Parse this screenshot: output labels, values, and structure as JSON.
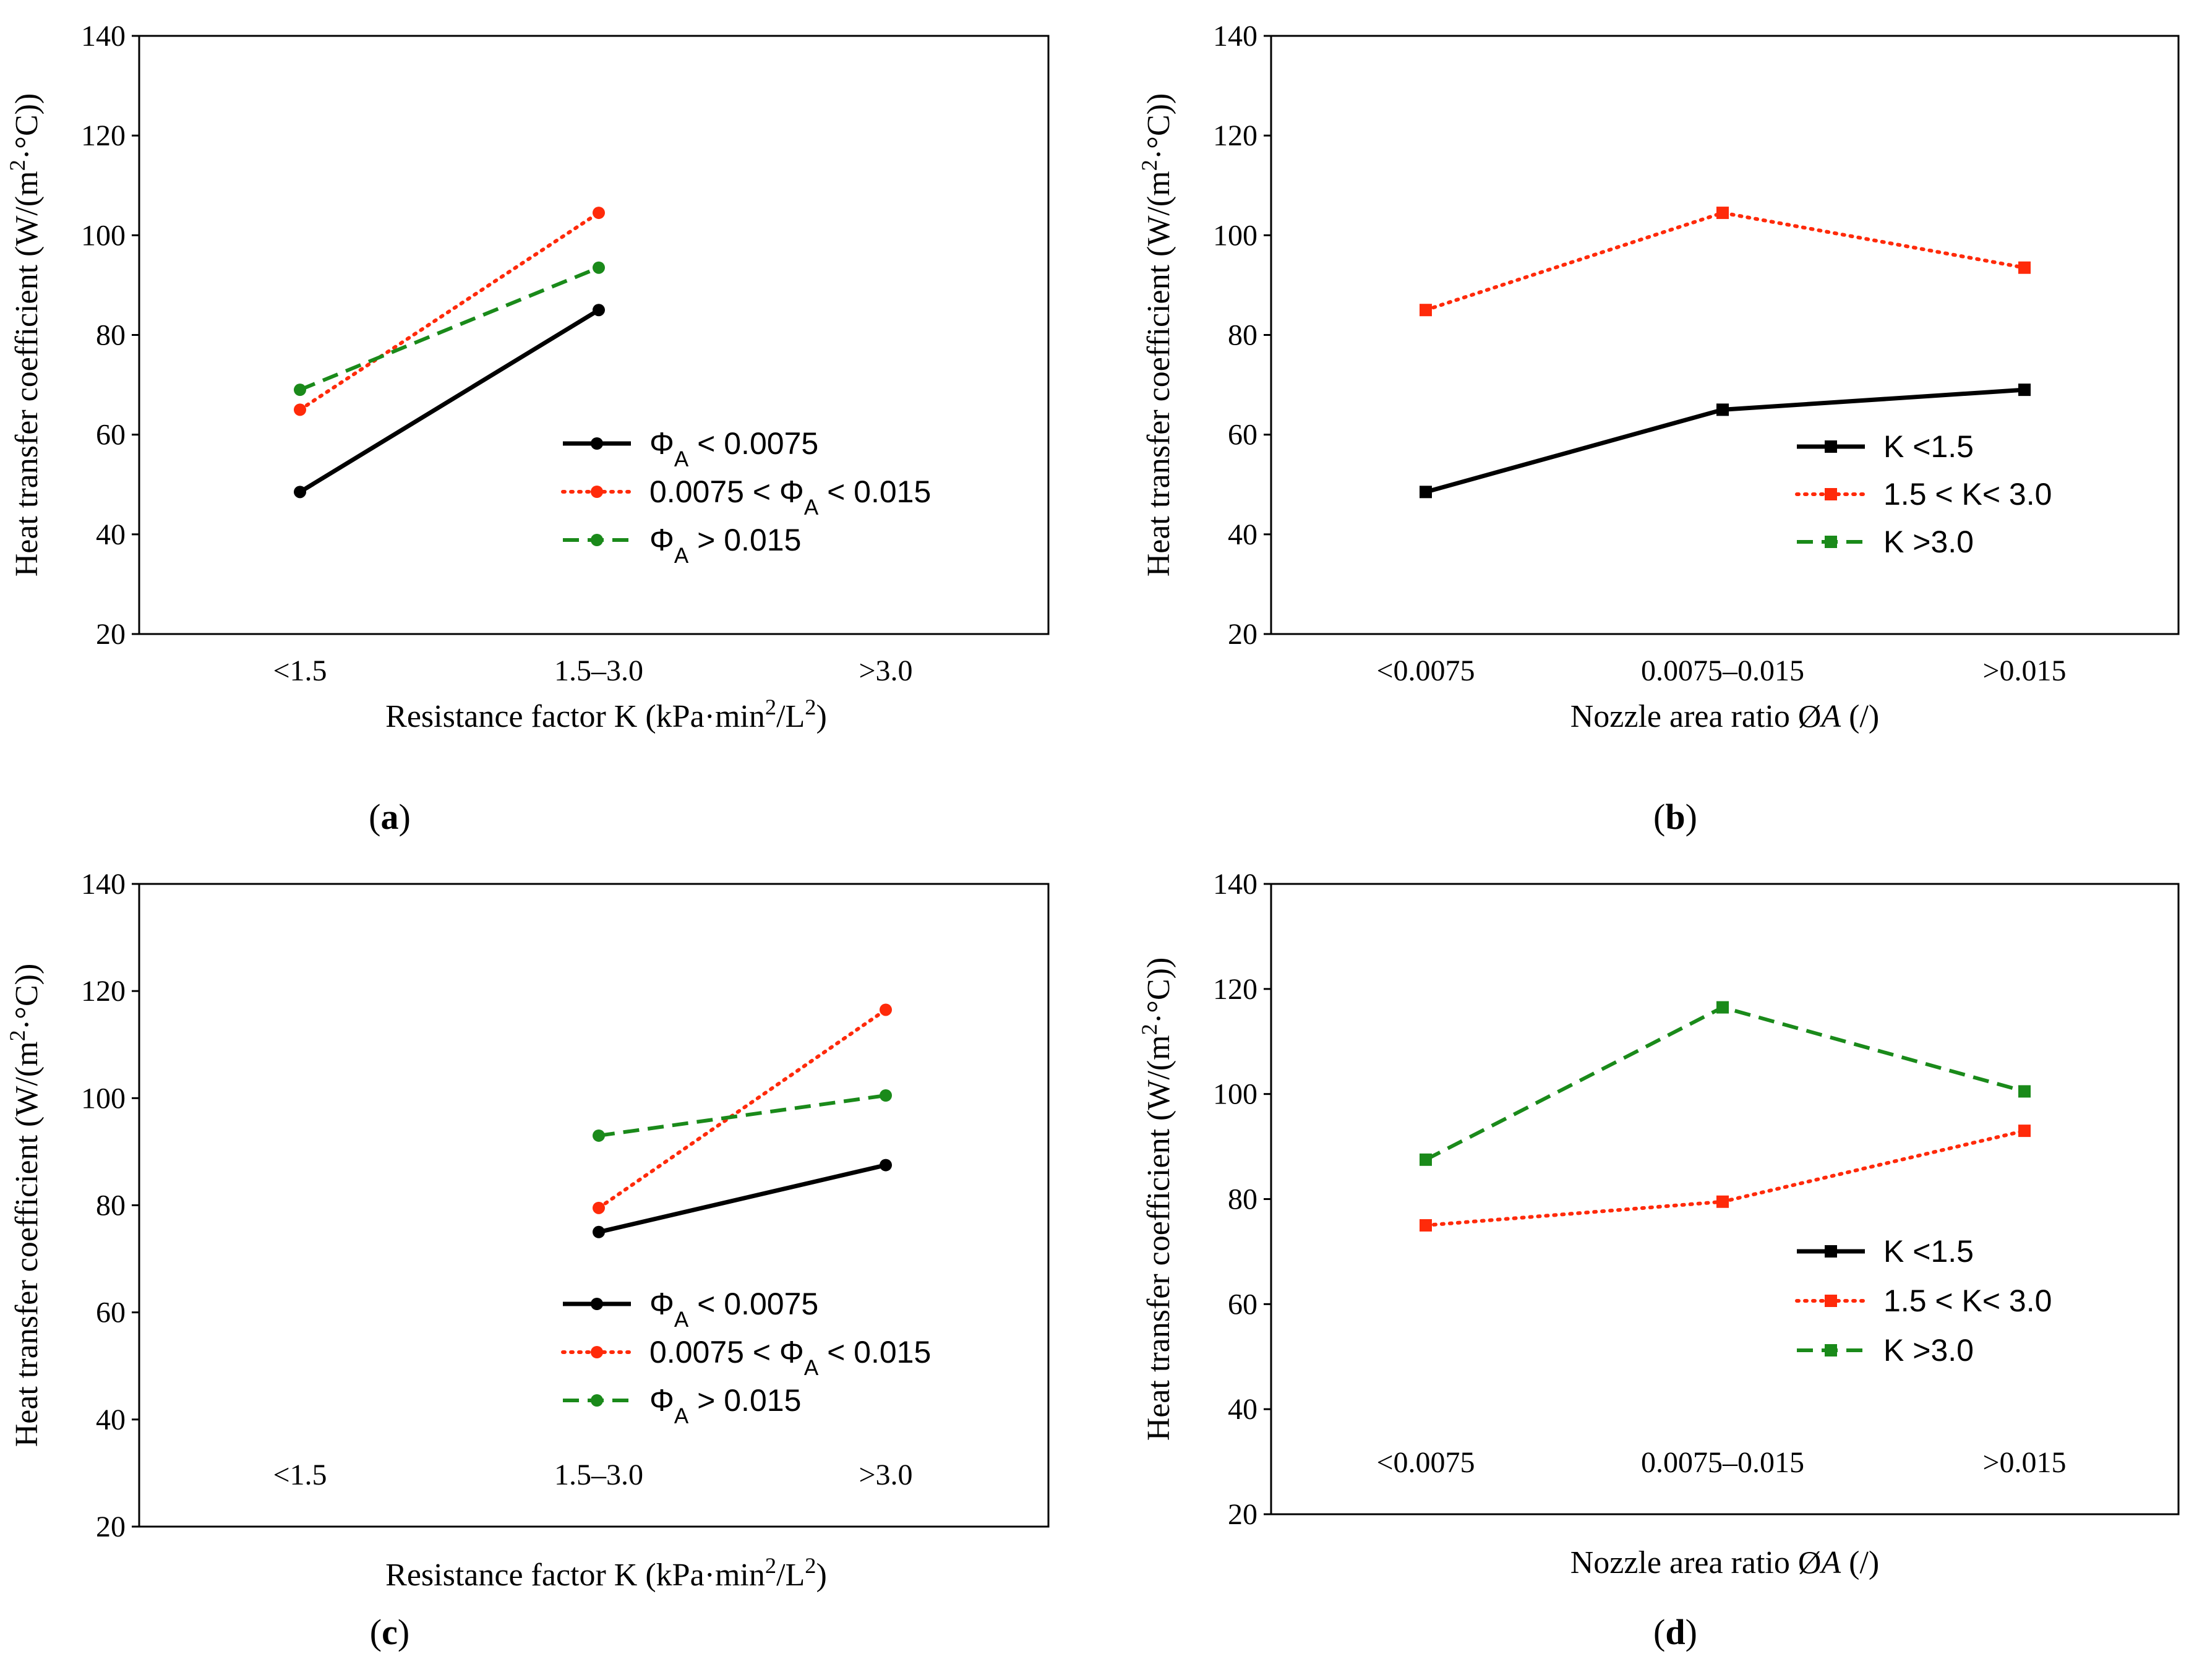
{
  "chart_data": [
    {
      "panel": "a",
      "type": "line",
      "caption_letter": "a",
      "xlabel": "Resistance factor K (kPa·min²/L²)",
      "xlabel_parts": [
        "Resistance factor K (kPa·min",
        "2",
        "/L",
        "2",
        ")"
      ],
      "ylabel": "Heat transfer coefficient (W/(m²·°C))",
      "ylabel_parts": [
        "Heat transfer coefficient (W/(m",
        "2",
        "·°C))"
      ],
      "categories": [
        "<1.5",
        "1.5–3.0",
        ">3.0"
      ],
      "category_label_position": "bottom",
      "ylim": [
        20,
        140
      ],
      "yticks": [
        20,
        40,
        60,
        80,
        100,
        120,
        140
      ],
      "series": [
        {
          "name": "ΦA < 0.0075",
          "legend": [
            "Φ",
            "A",
            " < 0.0075"
          ],
          "color": "#000000",
          "style": "solid",
          "marker": "circle",
          "values": [
            48.5,
            85,
            null
          ]
        },
        {
          "name": "0.0075 < ΦA < 0.015",
          "legend": [
            "0.0075 < Φ",
            "A",
            " < 0.015"
          ],
          "color": "#ff2a0a",
          "style": "dotted",
          "marker": "circle",
          "values": [
            65,
            104.5,
            null
          ]
        },
        {
          "name": "ΦA > 0.015",
          "legend": [
            "Φ",
            "A",
            " > 0.015"
          ],
          "color": "#1a8a1a",
          "style": "dashed",
          "marker": "circle",
          "values": [
            69,
            93.5,
            null
          ]
        }
      ]
    },
    {
      "panel": "b",
      "type": "line",
      "caption_letter": "b",
      "xlabel": "Nozzle area ratio ØA (/)",
      "xlabel_parts": [
        "Nozzle area ratio Ø",
        "A",
        " (/)"
      ],
      "ylabel": "Heat transfer coefficient (W/(m²·°C))",
      "ylabel_parts": [
        "Heat transfer coefficient (W/(m",
        "2",
        "·°C))"
      ],
      "categories": [
        "<0.0075",
        "0.0075–0.015",
        ">0.015"
      ],
      "category_label_position": "bottom",
      "ylim": [
        20,
        140
      ],
      "yticks": [
        20,
        40,
        60,
        80,
        100,
        120,
        140
      ],
      "series": [
        {
          "name": "K <1.5",
          "legend": [
            "K <1.5",
            "",
            ""
          ],
          "color": "#000000",
          "style": "solid",
          "marker": "square",
          "values": [
            48.5,
            65,
            69
          ]
        },
        {
          "name": "1.5 < K< 3.0",
          "legend": [
            "1.5 < K< 3.0",
            "",
            ""
          ],
          "color": "#ff2a0a",
          "style": "dotted",
          "marker": "square",
          "values": [
            85,
            104.5,
            93.5
          ]
        },
        {
          "name": "K >3.0",
          "legend": [
            "K >3.0",
            "",
            ""
          ],
          "color": "#1a8a1a",
          "style": "dashed",
          "marker": "square",
          "values": [
            null,
            null,
            null
          ]
        }
      ]
    },
    {
      "panel": "c",
      "type": "line",
      "caption_letter": "c",
      "xlabel": "Resistance factor K (kPa·min²/L²)",
      "xlabel_parts": [
        "Resistance factor K (kPa·min",
        "2",
        "/L",
        "2",
        ")"
      ],
      "ylabel": "Heat transfer coefficient (W/(m²·°C))",
      "ylabel_parts": [
        "Heat transfer coefficient (W/(m",
        "2",
        "·°C))"
      ],
      "categories": [
        "<1.5",
        "1.5–3.0",
        ">3.0"
      ],
      "category_label_position": "inside",
      "ylim": [
        20,
        140
      ],
      "yticks": [
        20,
        40,
        60,
        80,
        100,
        120,
        140
      ],
      "series": [
        {
          "name": "ΦA < 0.0075",
          "legend": [
            "Φ",
            "A",
            " < 0.0075"
          ],
          "color": "#000000",
          "style": "solid",
          "marker": "circle",
          "values": [
            null,
            75,
            87.5
          ]
        },
        {
          "name": "0.0075 < ΦA < 0.015",
          "legend": [
            "0.0075 < Φ",
            "A",
            " < 0.015"
          ],
          "color": "#ff2a0a",
          "style": "dotted",
          "marker": "circle",
          "values": [
            null,
            79.5,
            116.5
          ]
        },
        {
          "name": "ΦA > 0.015",
          "legend": [
            "Φ",
            "A",
            " > 0.015"
          ],
          "color": "#1a8a1a",
          "style": "dashed",
          "marker": "circle",
          "values": [
            null,
            93,
            100.5
          ]
        }
      ]
    },
    {
      "panel": "d",
      "type": "line",
      "caption_letter": "d",
      "xlabel": "Nozzle area ratio ØA (/)",
      "xlabel_parts": [
        "Nozzle area ratio Ø",
        "A",
        " (/)"
      ],
      "ylabel": "Heat transfer coefficient (W/(m²·°C))",
      "ylabel_parts": [
        "Heat transfer coefficient (W/(m",
        "2",
        "·°C))"
      ],
      "categories": [
        "<0.0075",
        "0.0075–0.015",
        ">0.015"
      ],
      "category_label_position": "inside",
      "ylim": [
        20,
        140
      ],
      "yticks": [
        20,
        40,
        60,
        80,
        100,
        120,
        140
      ],
      "series": [
        {
          "name": "K <1.5",
          "legend": [
            "K <1.5",
            "",
            ""
          ],
          "color": "#000000",
          "style": "solid",
          "marker": "square",
          "values": [
            null,
            null,
            null
          ]
        },
        {
          "name": "1.5 < K< 3.0",
          "legend": [
            "1.5 < K< 3.0",
            "",
            ""
          ],
          "color": "#ff2a0a",
          "style": "dotted",
          "marker": "square",
          "values": [
            75,
            79.5,
            93
          ]
        },
        {
          "name": "K >3.0",
          "legend": [
            "K >3.0",
            "",
            ""
          ],
          "color": "#1a8a1a",
          "style": "dashed",
          "marker": "square",
          "values": [
            87.5,
            116.5,
            100.5
          ]
        }
      ]
    }
  ]
}
